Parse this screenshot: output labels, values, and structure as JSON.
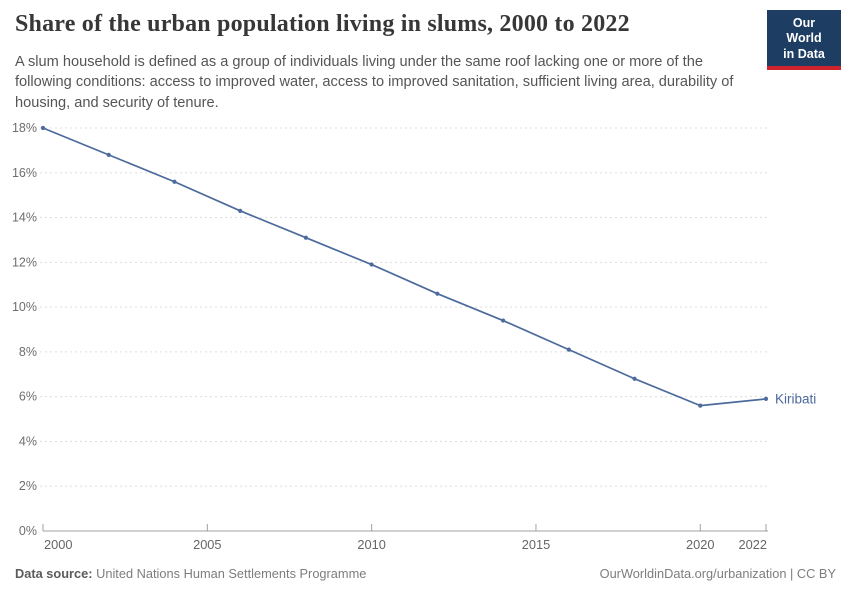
{
  "header": {
    "title": "Share of the urban population living in slums, 2000 to 2022",
    "subtitle": "A slum household is defined as a group of individuals living under the same roof lacking one or more of the following conditions: access to improved water, access to improved sanitation, sufficient living area, durability of housing, and security of tenure.",
    "logo": {
      "line1": "Our World",
      "line2": "in Data",
      "bg_color": "#1d3d63",
      "stripe_color": "#cf242c"
    }
  },
  "chart_data": {
    "type": "line",
    "title": "Share of the urban population living in slums, 2000 to 2022",
    "x": [
      2000,
      2002,
      2004,
      2006,
      2008,
      2010,
      2012,
      2014,
      2016,
      2018,
      2020,
      2022
    ],
    "series": [
      {
        "name": "Kiribati",
        "color": "#4c6a9c",
        "values": [
          18.0,
          16.8,
          15.6,
          14.3,
          13.1,
          11.9,
          10.6,
          9.4,
          8.1,
          6.8,
          5.6,
          5.9
        ]
      }
    ],
    "xlabel": "",
    "ylabel": "",
    "xlim": [
      2000,
      2022
    ],
    "ylim": [
      0,
      18
    ],
    "xticks": [
      2000,
      2005,
      2010,
      2015,
      2020,
      2022
    ],
    "ytick_step": 2,
    "ytick_suffix": "%",
    "grid": "horizontal-dashed",
    "legend_position": "end-of-line-label",
    "colors": {
      "gridline": "#dddddd",
      "axis": "#a0a0a0",
      "tick_label_y": "#6e6e6e",
      "tick_label_x": "#666666"
    }
  },
  "footer": {
    "data_source_label": "Data source:",
    "data_source_value": "United Nations Human Settlements Programme",
    "attribution": "OurWorldinData.org/urbanization | CC BY"
  }
}
